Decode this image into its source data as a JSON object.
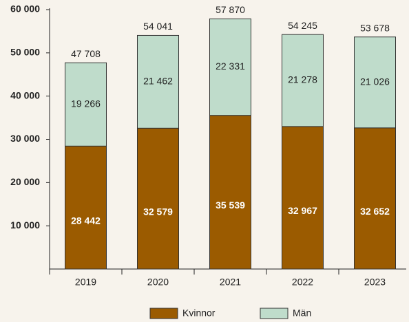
{
  "chart_data": {
    "type": "stacked_bar",
    "categories": [
      "2019",
      "2020",
      "2021",
      "2022",
      "2023"
    ],
    "series": [
      {
        "name": "Kvinnor",
        "color": "#9b5b00",
        "values": [
          28442,
          32579,
          35539,
          32967,
          32652
        ],
        "value_labels": [
          "28 442",
          "32 579",
          "35 539",
          "32 967",
          "32 652"
        ]
      },
      {
        "name": "Män",
        "color": "#bfdccb",
        "values": [
          19266,
          21462,
          22331,
          21278,
          21026
        ],
        "value_labels": [
          "19 266",
          "21 462",
          "22 331",
          "21 278",
          "21 026"
        ]
      }
    ],
    "totals": [
      47708,
      54041,
      57870,
      54245,
      53678
    ],
    "total_labels": [
      "47 708",
      "54 041",
      "57 870",
      "54 245",
      "53 678"
    ],
    "ylim": [
      0,
      60000
    ],
    "yticks": [
      {
        "value": 10000,
        "label": "10 000"
      },
      {
        "value": 20000,
        "label": "20 000"
      },
      {
        "value": 30000,
        "label": "30 000"
      },
      {
        "value": 40000,
        "label": "40 000"
      },
      {
        "value": 50000,
        "label": "50 000"
      },
      {
        "value": 60000,
        "label": "60 000"
      }
    ],
    "grid": false,
    "legend": "bottom"
  }
}
